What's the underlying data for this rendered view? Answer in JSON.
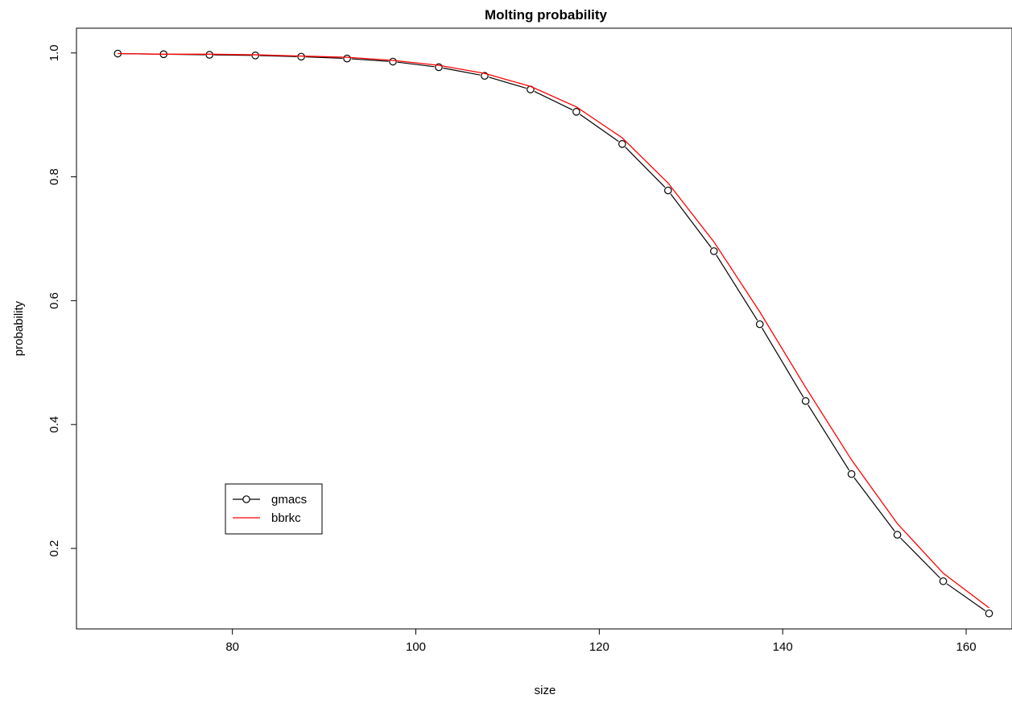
{
  "chart_data": {
    "type": "line",
    "title": "Molting probability",
    "xlabel": "size",
    "ylabel": "probability",
    "xlim": [
      63,
      165
    ],
    "ylim": [
      0.07,
      1.04
    ],
    "xticks": [
      80,
      100,
      120,
      140,
      160
    ],
    "yticks": [
      0.2,
      0.4,
      0.6,
      0.8,
      1.0
    ],
    "ytick_labels": [
      "0.2",
      "0.4",
      "0.6",
      "0.8",
      "1.0"
    ],
    "grid": false,
    "legend_position": "bottom-left",
    "series": [
      {
        "name": "gmacs",
        "color": "#000000",
        "marker": "open-circle",
        "x": [
          67.5,
          72.5,
          77.5,
          82.5,
          87.5,
          92.5,
          97.5,
          102.5,
          107.5,
          112.5,
          117.5,
          122.5,
          127.5,
          132.5,
          137.5,
          142.5,
          147.5,
          152.5,
          157.5,
          162.5
        ],
        "y": [
          0.999,
          0.998,
          0.997,
          0.996,
          0.994,
          0.991,
          0.986,
          0.977,
          0.963,
          0.941,
          0.905,
          0.853,
          0.778,
          0.68,
          0.562,
          0.438,
          0.32,
          0.222,
          0.147,
          0.095
        ]
      },
      {
        "name": "bbrkc",
        "color": "#ff0000",
        "marker": "none",
        "x": [
          67.5,
          72.5,
          77.5,
          82.5,
          87.5,
          92.5,
          97.5,
          102.5,
          107.5,
          112.5,
          117.5,
          122.5,
          127.5,
          132.5,
          137.5,
          142.5,
          147.5,
          152.5,
          157.5,
          162.5
        ],
        "y": [
          0.999,
          0.998,
          0.998,
          0.997,
          0.995,
          0.993,
          0.988,
          0.98,
          0.967,
          0.946,
          0.913,
          0.863,
          0.79,
          0.695,
          0.582,
          0.46,
          0.343,
          0.24,
          0.16,
          0.104
        ]
      }
    ]
  }
}
